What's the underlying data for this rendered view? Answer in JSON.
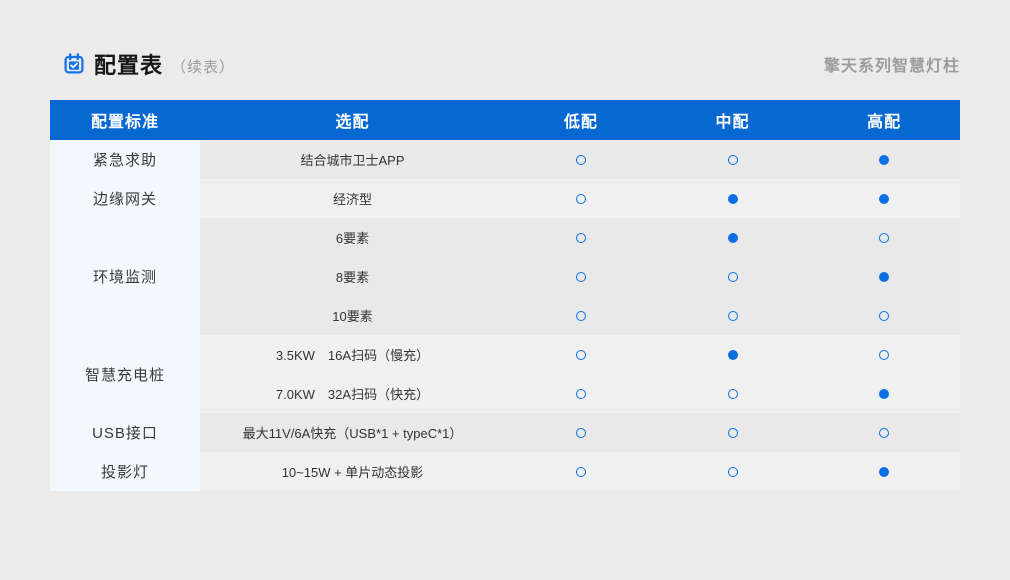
{
  "header": {
    "icon": "calendar-check-icon",
    "title": "配置表",
    "subtitle": "（续表）",
    "series_label": "擎天系列智慧灯柱"
  },
  "colors": {
    "page_bg": "#ebebeb",
    "table_header_bg": "#0768d2",
    "marker_blue": "#0b6fe4",
    "category_column_bg": "#f3f8fd",
    "group_row_dark": "#e9e9ea",
    "group_row_light": "#f0f0f1"
  },
  "table": {
    "columns": [
      "配置标准",
      "选配",
      "低配",
      "中配",
      "高配"
    ],
    "marker_states": {
      "filled": "selected",
      "empty": "optional"
    },
    "groups": [
      {
        "label": "紧急求助",
        "shade": "dark",
        "rows": [
          {
            "option": "结合城市卫士APP",
            "low": "empty",
            "mid": "empty",
            "high": "filled"
          }
        ]
      },
      {
        "label": "边缘网关",
        "shade": "light",
        "rows": [
          {
            "option": "经济型",
            "low": "empty",
            "mid": "filled",
            "high": "filled"
          }
        ]
      },
      {
        "label": "环境监测",
        "shade": "dark",
        "rows": [
          {
            "option": "6要素",
            "low": "empty",
            "mid": "filled",
            "high": "empty"
          },
          {
            "option": "8要素",
            "low": "empty",
            "mid": "empty",
            "high": "filled"
          },
          {
            "option": "10要素",
            "low": "empty",
            "mid": "empty",
            "high": "empty"
          }
        ]
      },
      {
        "label": "智慧充电桩",
        "shade": "light",
        "rows": [
          {
            "option": "3.5KW　16A扫码（慢充）",
            "low": "empty",
            "mid": "filled",
            "high": "empty"
          },
          {
            "option": "7.0KW　32A扫码（快充）",
            "low": "empty",
            "mid": "empty",
            "high": "filled"
          }
        ]
      },
      {
        "label": "USB接口",
        "shade": "dark",
        "rows": [
          {
            "option": "最大11V/6A快充（USB*1 + typeC*1）",
            "low": "empty",
            "mid": "empty",
            "high": "empty"
          }
        ]
      },
      {
        "label": "投影灯",
        "shade": "light",
        "rows": [
          {
            "option": "10~15W + 单片动态投影",
            "low": "empty",
            "mid": "empty",
            "high": "filled"
          }
        ]
      }
    ]
  }
}
